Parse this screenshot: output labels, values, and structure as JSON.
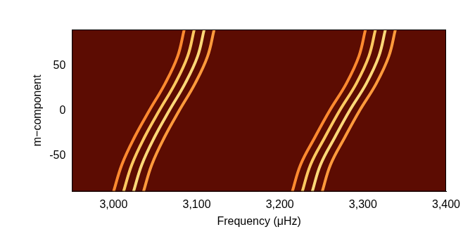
{
  "chart_data": {
    "type": "line",
    "x_label": "Frequency (μHz)",
    "y_label": "m−component",
    "xlim": [
      2950,
      3400
    ],
    "xticks": [
      3000,
      3100,
      3200,
      3300,
      3400
    ],
    "ylim": [
      -90,
      90
    ],
    "yticks": [
      -50,
      0,
      50
    ],
    "grid": false,
    "y": [
      -90,
      -60,
      -30,
      0,
      30,
      60,
      90
    ],
    "series": [
      {
        "color": "#ff8a30",
        "x": [
          3000,
          3010,
          3025,
          3043,
          3062,
          3077,
          3085
        ]
      },
      {
        "color": "#ffc860",
        "x": [
          3012,
          3022,
          3037,
          3055,
          3074,
          3089,
          3097
        ]
      },
      {
        "color": "#ffd878",
        "x": [
          3024,
          3034,
          3049,
          3067,
          3086,
          3101,
          3109
        ]
      },
      {
        "color": "#ff9a3c",
        "x": [
          3036,
          3046,
          3061,
          3079,
          3098,
          3113,
          3121
        ]
      },
      {
        "color": "#ff8a30",
        "x": [
          3215,
          3225,
          3242,
          3260,
          3280,
          3295,
          3303
        ]
      },
      {
        "color": "#ffc860",
        "x": [
          3227,
          3237,
          3254,
          3272,
          3292,
          3307,
          3315
        ]
      },
      {
        "color": "#ffd878",
        "x": [
          3239,
          3249,
          3266,
          3284,
          3304,
          3319,
          3327
        ]
      },
      {
        "color": "#ff9a3c",
        "x": [
          3251,
          3261,
          3278,
          3296,
          3316,
          3331,
          3339
        ]
      }
    ]
  }
}
